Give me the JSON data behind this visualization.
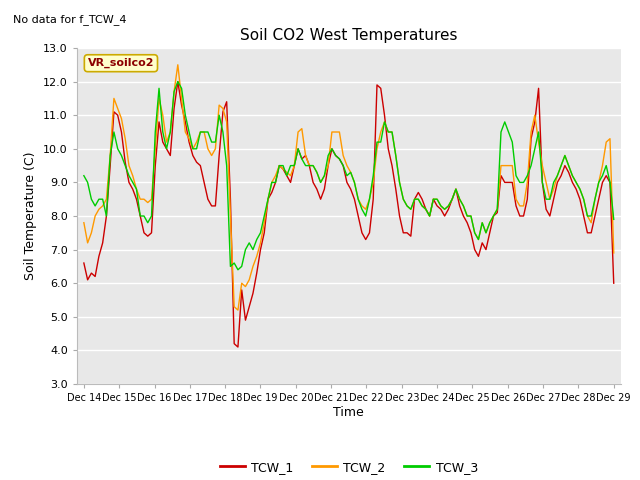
{
  "title": "Soil CO2 West Temperatures",
  "no_data_text": "No data for f_TCW_4",
  "annotation_text": "VR_soilco2",
  "xlabel": "Time",
  "ylabel": "Soil Temperature (C)",
  "ylim": [
    3.0,
    13.0
  ],
  "yticks": [
    3.0,
    4.0,
    5.0,
    6.0,
    7.0,
    8.0,
    9.0,
    10.0,
    11.0,
    12.0,
    13.0
  ],
  "xtick_labels": [
    "Dec 14",
    "Dec 15",
    "Dec 16",
    "Dec 17",
    "Dec 18",
    "Dec 19",
    "Dec 20",
    "Dec 21",
    "Dec 22",
    "Dec 23",
    "Dec 24",
    "Dec 25",
    "Dec 26",
    "Dec 27",
    "Dec 28",
    "Dec 29"
  ],
  "bg_color": "#e8e8e8",
  "fig_bg_color": "#ffffff",
  "grid_color": "#ffffff",
  "legend_entries": [
    "TCW_1",
    "TCW_2",
    "TCW_3"
  ],
  "colors": {
    "TCW_1": "#cc0000",
    "TCW_2": "#ff9900",
    "TCW_3": "#00cc00"
  },
  "TCW_1": [
    6.6,
    6.1,
    6.3,
    6.2,
    6.8,
    7.2,
    8.0,
    9.5,
    11.1,
    11.0,
    10.5,
    9.6,
    9.0,
    8.8,
    8.5,
    8.0,
    7.5,
    7.4,
    7.5,
    9.5,
    10.8,
    10.2,
    10.0,
    9.8,
    11.2,
    12.0,
    11.3,
    10.8,
    10.2,
    9.8,
    9.6,
    9.5,
    9.0,
    8.5,
    8.3,
    8.3,
    9.8,
    11.1,
    11.4,
    8.5,
    4.2,
    4.1,
    5.8,
    4.9,
    5.3,
    5.7,
    6.3,
    7.0,
    7.5,
    8.5,
    8.7,
    9.0,
    9.5,
    9.4,
    9.2,
    9.0,
    9.5,
    10.0,
    9.7,
    9.8,
    9.5,
    9.0,
    8.8,
    8.5,
    8.8,
    9.5,
    10.0,
    9.8,
    9.7,
    9.5,
    9.0,
    8.8,
    8.5,
    8.0,
    7.5,
    7.3,
    7.5,
    8.5,
    11.9,
    11.8,
    11.0,
    10.0,
    9.5,
    8.8,
    8.0,
    7.5,
    7.5,
    7.4,
    8.5,
    8.7,
    8.5,
    8.2,
    8.0,
    8.5,
    8.3,
    8.2,
    8.0,
    8.2,
    8.5,
    8.8,
    8.3,
    8.0,
    7.8,
    7.5,
    7.0,
    6.8,
    7.2,
    7.0,
    7.5,
    8.0,
    8.1,
    9.2,
    9.0,
    9.0,
    9.0,
    8.3,
    8.0,
    8.0,
    8.5,
    10.3,
    10.8,
    11.8,
    9.0,
    8.2,
    8.0,
    8.5,
    9.0,
    9.2,
    9.5,
    9.3,
    9.0,
    8.8,
    8.5,
    8.0,
    7.5,
    7.5,
    8.0,
    8.5,
    9.0,
    9.2,
    9.0,
    6.0
  ],
  "TCW_2": [
    7.8,
    7.2,
    7.5,
    8.0,
    8.2,
    8.3,
    8.5,
    9.8,
    11.5,
    11.2,
    10.9,
    10.3,
    9.5,
    9.2,
    8.8,
    8.5,
    8.5,
    8.4,
    8.5,
    10.0,
    11.5,
    11.0,
    10.2,
    10.5,
    11.7,
    12.5,
    11.5,
    10.5,
    10.3,
    10.0,
    10.2,
    10.5,
    10.5,
    10.0,
    9.8,
    10.0,
    11.3,
    11.2,
    10.8,
    8.0,
    5.3,
    5.2,
    6.0,
    5.9,
    6.1,
    6.5,
    6.8,
    7.2,
    7.8,
    8.5,
    9.0,
    9.2,
    9.5,
    9.4,
    9.3,
    9.2,
    9.5,
    10.5,
    10.6,
    9.8,
    9.5,
    9.5,
    9.3,
    9.0,
    9.2,
    9.5,
    10.5,
    10.5,
    10.5,
    9.8,
    9.5,
    9.3,
    9.0,
    8.5,
    8.3,
    8.2,
    8.5,
    9.0,
    10.0,
    10.5,
    10.8,
    10.5,
    10.5,
    9.8,
    9.0,
    8.5,
    8.3,
    8.2,
    8.5,
    8.5,
    8.3,
    8.2,
    8.0,
    8.5,
    8.5,
    8.3,
    8.2,
    8.3,
    8.5,
    8.8,
    8.5,
    8.3,
    8.0,
    8.0,
    7.5,
    7.3,
    7.8,
    7.5,
    7.8,
    8.0,
    8.2,
    9.5,
    9.5,
    9.5,
    9.5,
    8.5,
    8.3,
    8.3,
    9.0,
    10.5,
    11.0,
    10.2,
    9.5,
    9.0,
    8.5,
    8.8,
    9.2,
    9.5,
    9.8,
    9.5,
    9.2,
    9.0,
    8.8,
    8.5,
    8.0,
    7.8,
    8.5,
    9.0,
    9.5,
    10.2,
    10.3,
    6.9
  ],
  "TCW_3": [
    9.2,
    9.0,
    8.5,
    8.3,
    8.5,
    8.5,
    8.0,
    9.8,
    10.5,
    10.0,
    9.8,
    9.5,
    9.2,
    9.0,
    8.8,
    8.0,
    8.0,
    7.8,
    8.0,
    10.5,
    11.8,
    10.5,
    10.0,
    10.5,
    11.7,
    12.0,
    11.8,
    11.0,
    10.5,
    10.0,
    10.0,
    10.5,
    10.5,
    10.5,
    10.2,
    10.2,
    11.0,
    10.5,
    9.5,
    6.5,
    6.6,
    6.4,
    6.5,
    7.0,
    7.2,
    7.0,
    7.3,
    7.5,
    8.0,
    8.5,
    9.0,
    9.0,
    9.5,
    9.5,
    9.2,
    9.5,
    9.5,
    10.0,
    9.7,
    9.5,
    9.5,
    9.5,
    9.3,
    9.0,
    9.2,
    9.8,
    10.0,
    9.8,
    9.7,
    9.5,
    9.2,
    9.3,
    9.0,
    8.5,
    8.2,
    8.0,
    8.5,
    9.2,
    10.2,
    10.2,
    10.8,
    10.5,
    10.5,
    9.8,
    9.0,
    8.5,
    8.3,
    8.2,
    8.5,
    8.5,
    8.3,
    8.2,
    8.0,
    8.5,
    8.5,
    8.3,
    8.2,
    8.3,
    8.5,
    8.8,
    8.5,
    8.3,
    8.0,
    8.0,
    7.5,
    7.3,
    7.8,
    7.5,
    7.8,
    8.0,
    8.2,
    10.5,
    10.8,
    10.5,
    10.2,
    9.2,
    9.0,
    9.0,
    9.2,
    9.5,
    10.0,
    10.5,
    9.0,
    8.5,
    8.5,
    9.0,
    9.2,
    9.5,
    9.8,
    9.5,
    9.2,
    9.0,
    8.8,
    8.5,
    8.0,
    8.0,
    8.5,
    9.0,
    9.2,
    9.5,
    9.0,
    7.9
  ]
}
